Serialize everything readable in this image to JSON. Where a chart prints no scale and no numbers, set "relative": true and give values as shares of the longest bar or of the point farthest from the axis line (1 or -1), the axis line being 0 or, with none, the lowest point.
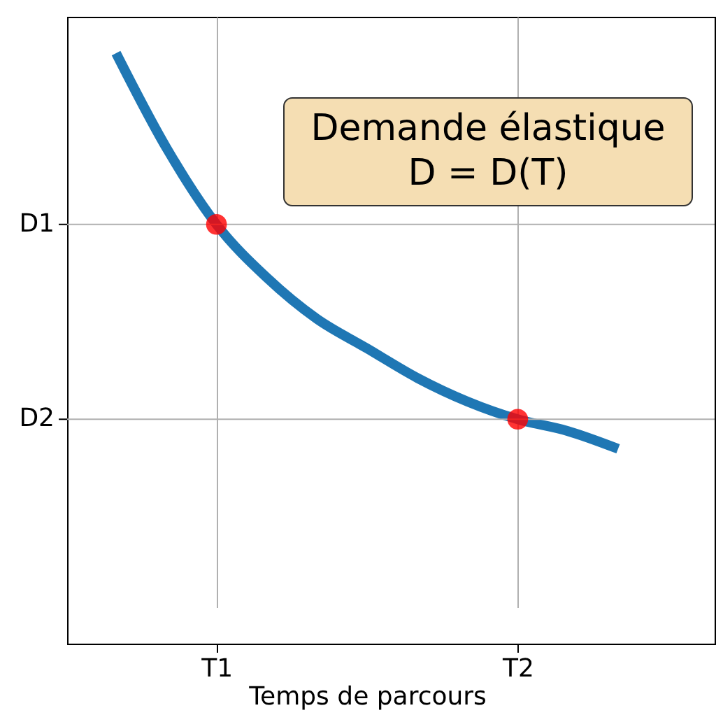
{
  "chart_data": {
    "type": "line",
    "xlabel": "Temps de parcours",
    "relative": true,
    "annotations": [
      "Demande élastique\nD = D(T)"
    ],
    "categories": [
      null,
      null,
      "T1",
      null,
      null,
      null,
      null,
      null,
      "T2",
      null,
      null
    ],
    "grid": "x",
    "line_style": "solid",
    "marker": "none",
    "ref_lines": [
      {
        "axis": "y",
        "value": 0.71,
        "label": "D1",
        "color": "#b0b0b0"
      },
      {
        "axis": "y",
        "value": 0.38,
        "label": "D2",
        "color": "#b0b0b0"
      }
    ],
    "series": [
      {
        "color": "#1f77b4",
        "values": [
          1,
          0.84,
          0.71,
          0.62,
          0.55,
          0.5,
          0.45,
          0.41,
          0.38,
          0.36,
          0.33
        ]
      },
      {
        "type": "scatter",
        "color": "#ff0000",
        "marker": "circle",
        "x": [
          "T1",
          "T2"
        ],
        "values": [
          0.71,
          0.38
        ]
      }
    ]
  }
}
